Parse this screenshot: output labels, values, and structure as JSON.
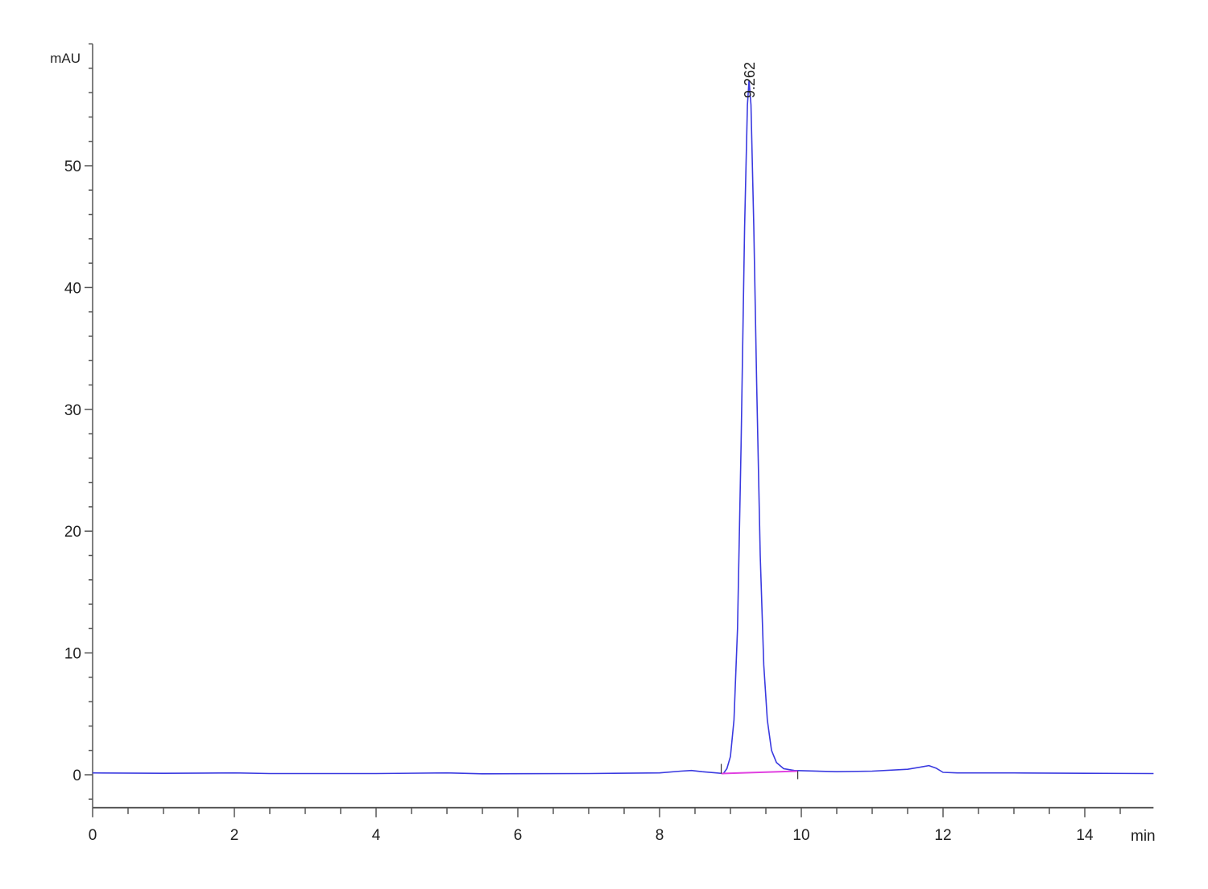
{
  "chart_data": {
    "type": "line",
    "title": "",
    "xlabel": "min",
    "ylabel": "mAU",
    "xlim": [
      0,
      14.97
    ],
    "ylim": [
      -2.7,
      60
    ],
    "x_ticks": [
      0,
      2,
      4,
      6,
      8,
      10,
      12,
      14
    ],
    "y_ticks": [
      0,
      10,
      20,
      30,
      40,
      50
    ],
    "x_minor_step": 0.5,
    "y_minor_step": 2,
    "grid": false,
    "colors": {
      "signal": "#3a3ae0",
      "integration_baseline": "#e040e0",
      "axis": "#555555"
    },
    "series": [
      {
        "x": [
          0,
          1,
          2,
          2.5,
          4,
          5,
          5.5,
          7,
          8,
          8.3,
          8.45,
          8.6,
          8.8,
          8.9,
          8.95,
          9.0,
          9.05,
          9.1,
          9.15,
          9.2,
          9.24,
          9.262,
          9.29,
          9.33,
          9.37,
          9.42,
          9.47,
          9.52,
          9.58,
          9.65,
          9.75,
          9.9,
          10.5,
          11,
          11.5,
          11.7,
          11.8,
          11.9,
          12.0,
          12.2,
          13,
          14,
          14.97
        ],
        "y": [
          0.15,
          0.12,
          0.15,
          0.1,
          0.1,
          0.15,
          0.08,
          0.1,
          0.15,
          0.3,
          0.35,
          0.25,
          0.15,
          0.1,
          0.5,
          1.5,
          4.5,
          12,
          27,
          45,
          55,
          57,
          55,
          45,
          32,
          18,
          9,
          4.5,
          2,
          1,
          0.5,
          0.35,
          0.25,
          0.3,
          0.45,
          0.65,
          0.75,
          0.55,
          0.2,
          0.15,
          0.15,
          0.12,
          0.1
        ]
      }
    ],
    "peaks": [
      {
        "label": "9.262",
        "rt": 9.262,
        "height": 57,
        "integration_start": 8.87,
        "integration_end": 9.95
      }
    ]
  }
}
